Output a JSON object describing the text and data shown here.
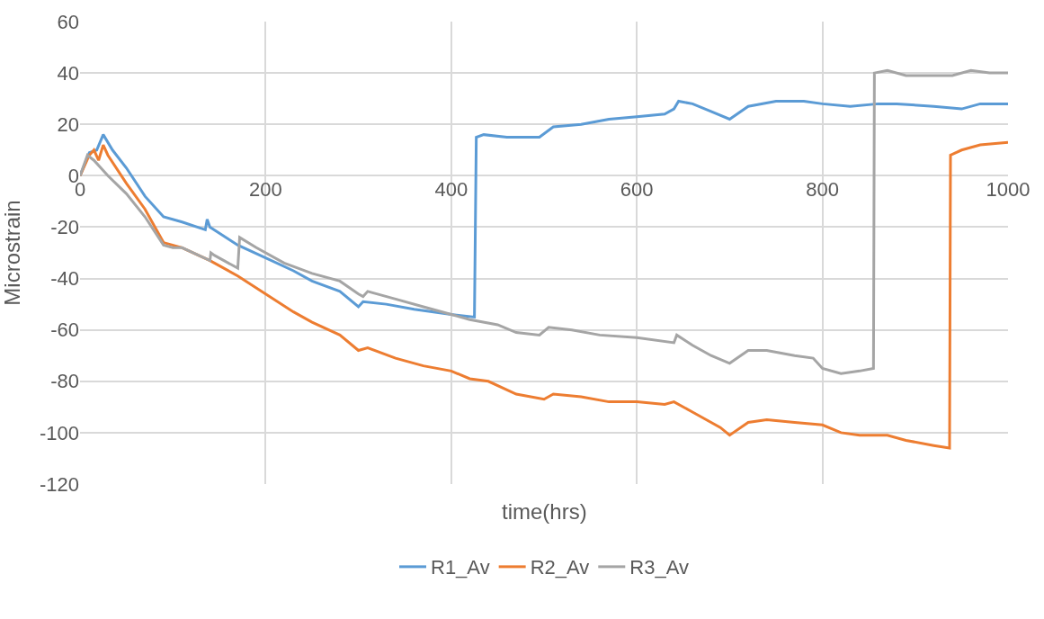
{
  "chart_data": {
    "type": "line",
    "xlabel": "time(hrs)",
    "ylabel": "Microstrain",
    "xlim": [
      0,
      1000
    ],
    "xticks": [
      0,
      200,
      400,
      600,
      800,
      1000
    ],
    "ylim": [
      -120,
      60
    ],
    "yticks": [
      -120,
      -100,
      -80,
      -60,
      -40,
      -20,
      0,
      20,
      40,
      60
    ],
    "grid": true,
    "legend": "bottom",
    "marker": "none",
    "line_style": "solid",
    "series": [
      {
        "name": "R1_Av",
        "color": "#5b9bd5",
        "x": [
          0,
          10,
          18,
          25,
          35,
          50,
          70,
          90,
          110,
          135,
          137,
          140,
          170,
          200,
          230,
          250,
          280,
          300,
          305,
          330,
          360,
          400,
          425,
          427,
          435,
          460,
          495,
          510,
          540,
          570,
          600,
          630,
          640,
          645,
          660,
          680,
          700,
          720,
          750,
          780,
          800,
          830,
          860,
          880,
          920,
          950,
          970,
          1000
        ],
        "values": [
          0,
          9,
          10,
          16,
          10,
          3,
          -8,
          -16,
          -18,
          -21,
          -17,
          -20,
          -27,
          -32,
          -37,
          -41,
          -45,
          -51,
          -49,
          -50,
          -52,
          -54,
          -55,
          15,
          16,
          15,
          15,
          19,
          20,
          22,
          23,
          24,
          26,
          29,
          28,
          25,
          22,
          27,
          29,
          29,
          28,
          27,
          28,
          28,
          27,
          26,
          28,
          28
        ]
      },
      {
        "name": "R2_Av",
        "color": "#ed7d31",
        "x": [
          0,
          10,
          15,
          20,
          25,
          30,
          50,
          70,
          90,
          110,
          140,
          170,
          200,
          230,
          250,
          280,
          300,
          310,
          340,
          370,
          400,
          420,
          440,
          470,
          500,
          510,
          540,
          570,
          600,
          630,
          640,
          660,
          690,
          700,
          720,
          740,
          770,
          800,
          820,
          840,
          870,
          890,
          920,
          937,
          938,
          950,
          970,
          1000
        ],
        "values": [
          0,
          8,
          10,
          6,
          12,
          8,
          -3,
          -13,
          -26,
          -28,
          -33,
          -39,
          -46,
          -53,
          -57,
          -62,
          -68,
          -67,
          -71,
          -74,
          -76,
          -79,
          -80,
          -85,
          -87,
          -85,
          -86,
          -88,
          -88,
          -89,
          -88,
          -92,
          -98,
          -101,
          -96,
          -95,
          -96,
          -97,
          -100,
          -101,
          -101,
          -103,
          -105,
          -106,
          8,
          10,
          12,
          13
        ]
      },
      {
        "name": "R3_Av",
        "color": "#a5a5a5",
        "x": [
          0,
          8,
          15,
          30,
          50,
          70,
          90,
          100,
          110,
          140,
          141,
          145,
          170,
          172,
          190,
          220,
          250,
          280,
          300,
          305,
          310,
          340,
          370,
          400,
          420,
          450,
          470,
          495,
          505,
          530,
          560,
          600,
          640,
          643,
          660,
          680,
          700,
          720,
          740,
          770,
          790,
          800,
          820,
          840,
          855,
          856,
          870,
          890,
          920,
          940,
          960,
          980,
          1000
        ],
        "values": [
          0,
          8,
          6,
          0,
          -7,
          -16,
          -27,
          -28,
          -28,
          -33,
          -30,
          -31,
          -36,
          -24,
          -28,
          -34,
          -38,
          -41,
          -46,
          -47,
          -45,
          -48,
          -51,
          -54,
          -56,
          -58,
          -61,
          -62,
          -59,
          -60,
          -62,
          -63,
          -65,
          -62,
          -66,
          -70,
          -73,
          -68,
          -68,
          -70,
          -71,
          -75,
          -77,
          -76,
          -75,
          40,
          41,
          39,
          39,
          39,
          41,
          40,
          40
        ]
      }
    ]
  }
}
